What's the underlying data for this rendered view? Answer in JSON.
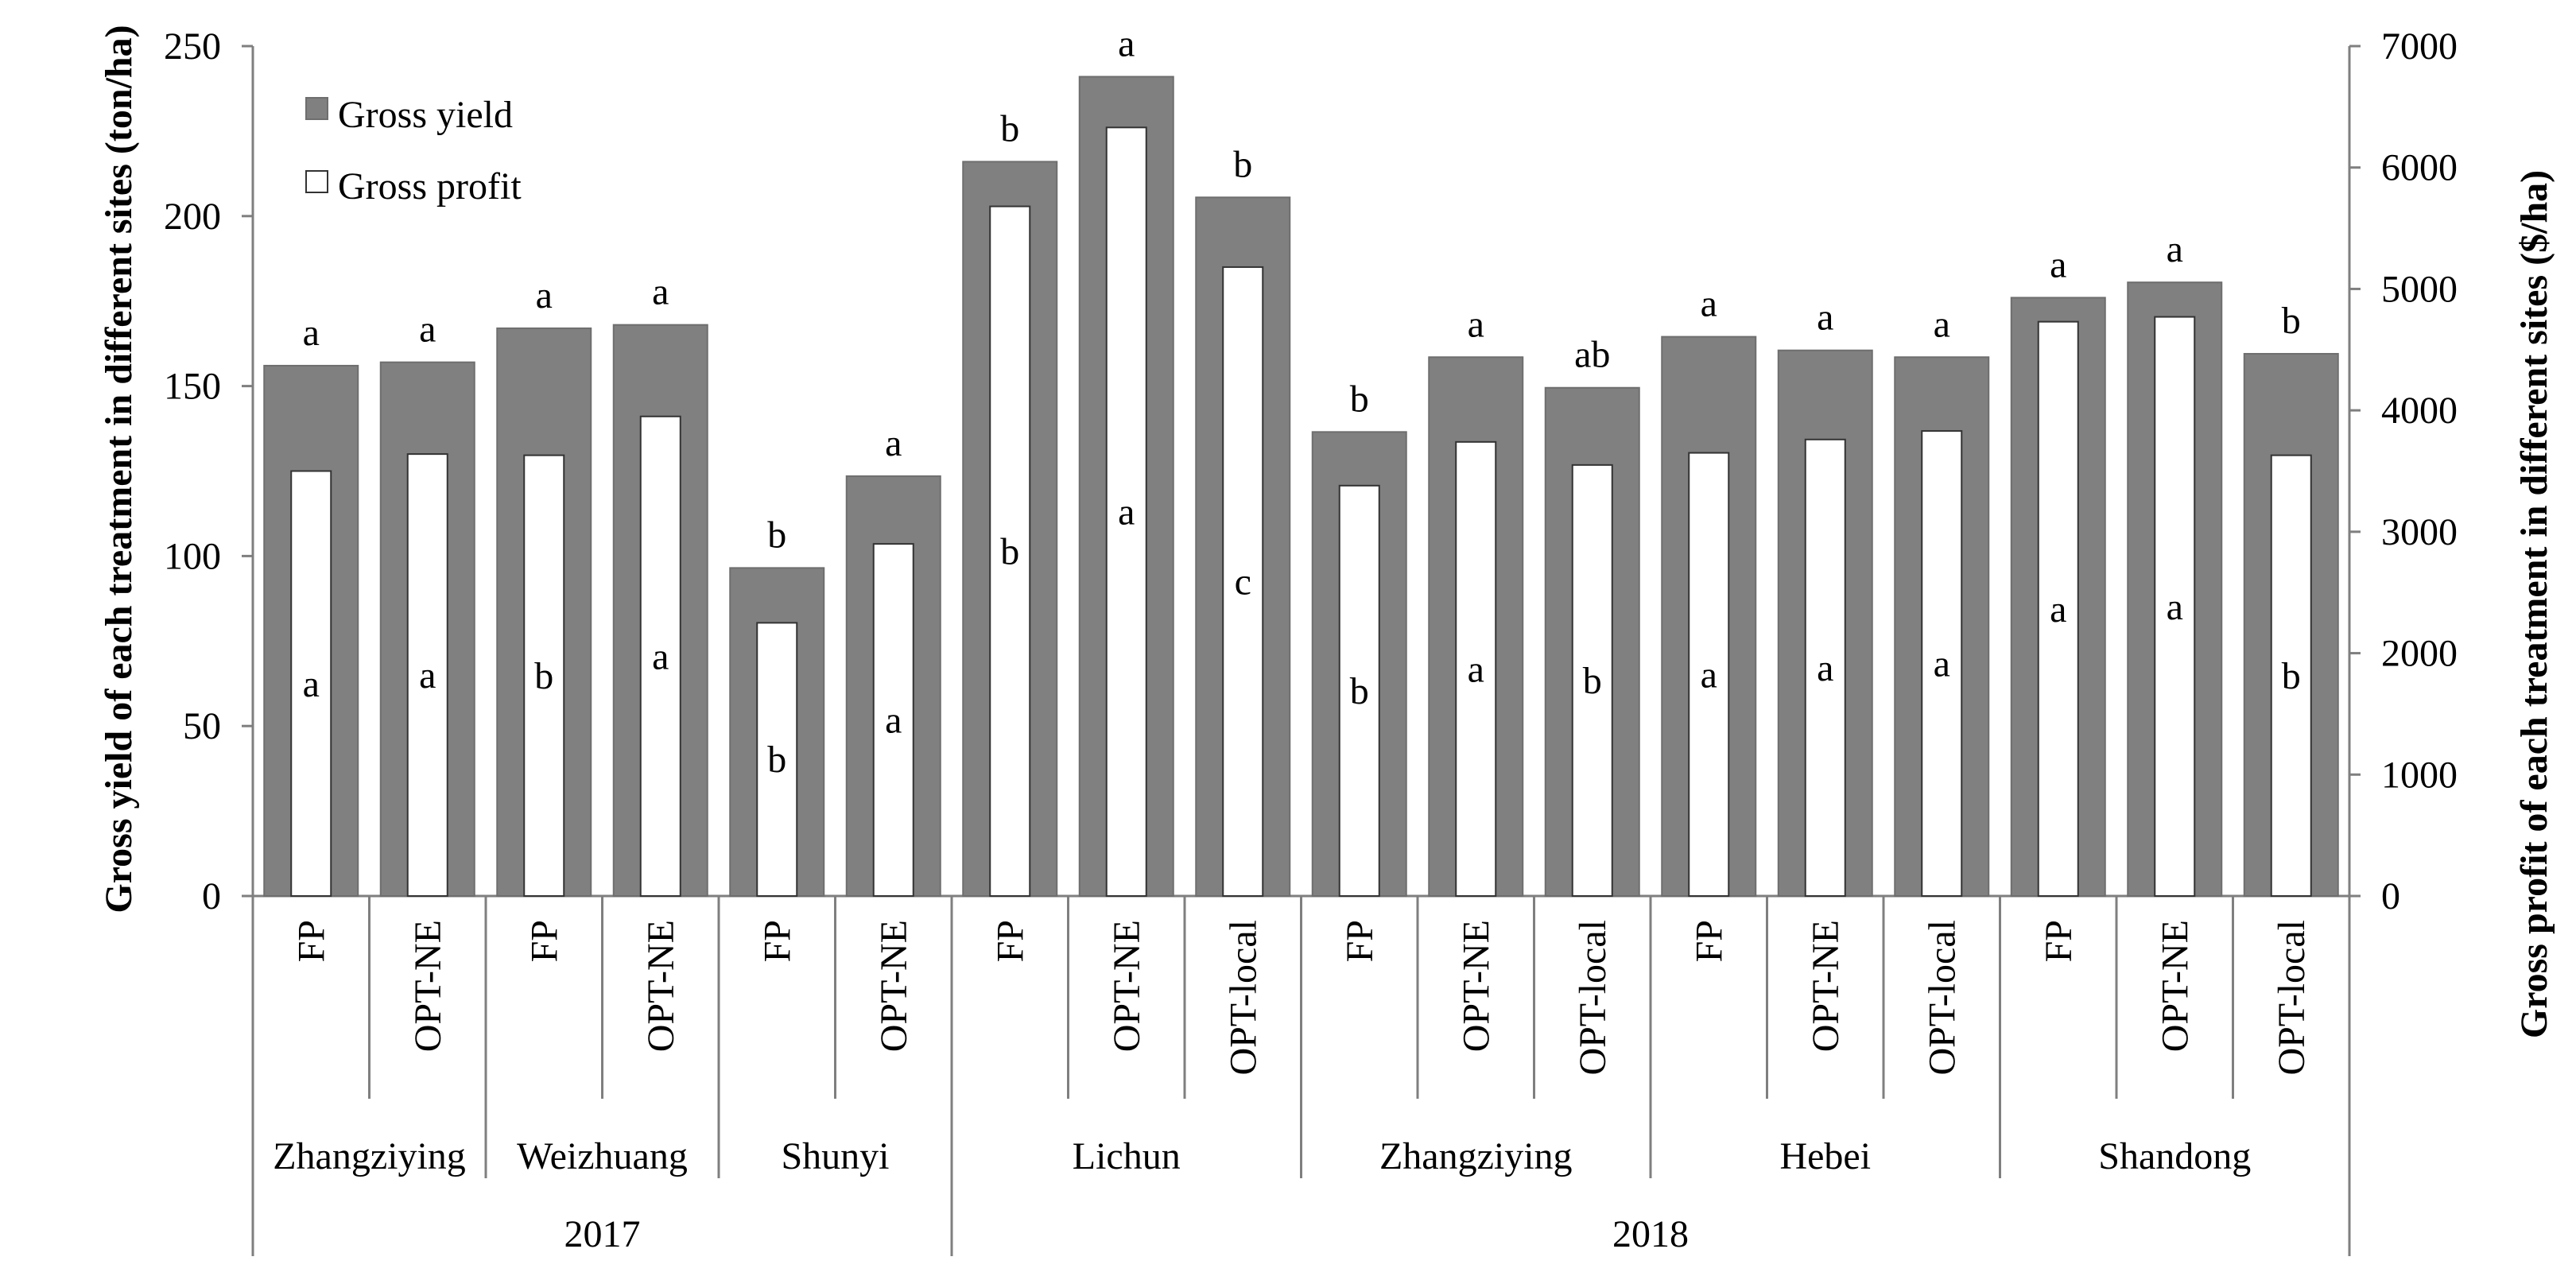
{
  "chart_data": {
    "type": "bar",
    "series": [
      {
        "name": "Gross yield",
        "axis": "left",
        "unit": "ton/ha",
        "values": [
          156,
          157,
          167,
          168,
          96.5,
          123.5,
          216,
          241,
          205.5,
          136.5,
          158.5,
          149.5,
          164.5,
          160.5,
          158.5,
          176,
          180.5,
          159.5
        ]
      },
      {
        "name": "Gross profit",
        "axis": "right",
        "unit": "$/ha",
        "values": [
          3500,
          3640,
          3630,
          3950,
          2250,
          2900,
          5680,
          6330,
          5180,
          3380,
          3740,
          3550,
          3650,
          3760,
          3830,
          4730,
          4770,
          3630
        ]
      }
    ],
    "categories": [
      "FP",
      "OPT-NE",
      "FP",
      "OPT-NE",
      "FP",
      "OPT-NE",
      "FP",
      "OPT-NE",
      "OPT-local",
      "FP",
      "OPT-NE",
      "OPT-local",
      "FP",
      "OPT-NE",
      "OPT-local",
      "FP",
      "OPT-NE",
      "OPT-local"
    ],
    "sites": [
      {
        "name": "Zhangziying",
        "count": 2
      },
      {
        "name": "Weizhuang",
        "count": 2
      },
      {
        "name": "Shunyi",
        "count": 2
      },
      {
        "name": "Lichun",
        "count": 3
      },
      {
        "name": "Zhangziying",
        "count": 3
      },
      {
        "name": "Hebei",
        "count": 3
      },
      {
        "name": "Shandong",
        "count": 3
      }
    ],
    "years": [
      {
        "name": "2017",
        "count": 6
      },
      {
        "name": "2018",
        "count": 12
      }
    ],
    "yield_letters": [
      "a",
      "a",
      "a",
      "a",
      "b",
      "a",
      "b",
      "a",
      "b",
      "b",
      "a",
      "ab",
      "a",
      "a",
      "a",
      "a",
      "a",
      "b"
    ],
    "profit_letters": [
      "a",
      "a",
      "b",
      "a",
      "b",
      "a",
      "b",
      "a",
      "c",
      "b",
      "a",
      "b",
      "a",
      "a",
      "a",
      "a",
      "a",
      "b"
    ],
    "ylabel": "Gross yield of each treatment in different sites (ton/ha)",
    "y2label": "Gross profit of each treatment in different sites ($/ha)",
    "ylim": [
      0,
      250
    ],
    "yticks": [
      0,
      50,
      100,
      150,
      200,
      250
    ],
    "y2lim": [
      0,
      7000
    ],
    "y2ticks": [
      0,
      1000,
      2000,
      3000,
      4000,
      5000,
      6000,
      7000
    ],
    "legend_position": "top-left",
    "grid": false,
    "colors": {
      "yield": "#808080",
      "profit": "#ffffff",
      "axis": "#7f7f7f"
    }
  }
}
